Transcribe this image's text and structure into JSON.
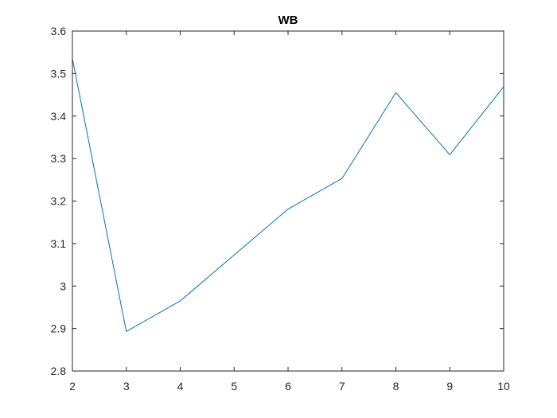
{
  "chart_data": {
    "type": "line",
    "title": "WB",
    "xlabel": "",
    "ylabel": "",
    "xlim": [
      2,
      10
    ],
    "ylim": [
      2.8,
      3.6
    ],
    "xticks": [
      2,
      3,
      4,
      5,
      6,
      7,
      8,
      9,
      10
    ],
    "xtick_labels": [
      "2",
      "3",
      "4",
      "5",
      "6",
      "7",
      "8",
      "9",
      "10"
    ],
    "yticks": [
      2.8,
      2.9,
      3.0,
      3.1,
      3.2,
      3.3,
      3.4,
      3.5,
      3.6
    ],
    "ytick_labels": [
      "2.8",
      "2.9",
      "3",
      "3.1",
      "3.2",
      "3.3",
      "3.4",
      "3.5",
      "3.6"
    ],
    "grid": false,
    "series": [
      {
        "color": "#0072BD",
        "x": [
          2,
          3,
          4,
          5,
          6,
          7,
          8,
          9,
          10
        ],
        "y": [
          3.535,
          2.893,
          2.965,
          3.073,
          3.181,
          3.253,
          3.455,
          3.309,
          3.469
        ]
      }
    ]
  }
}
